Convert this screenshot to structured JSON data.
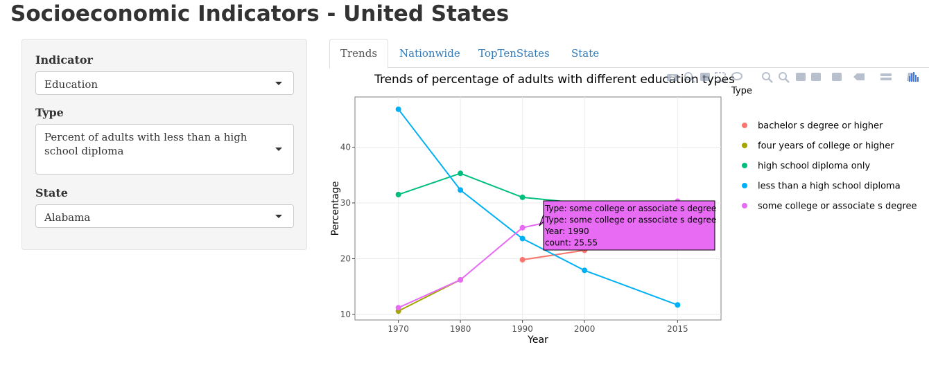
{
  "page": {
    "title": "Socioeconomic Indicators - United States"
  },
  "sidebar": {
    "indicator": {
      "label": "Indicator",
      "value": "Education"
    },
    "type": {
      "label": "Type",
      "value": "Percent of adults with less than a high school diploma"
    },
    "state": {
      "label": "State",
      "value": "Alabama"
    }
  },
  "tabs": [
    {
      "label": "Trends",
      "active": true
    },
    {
      "label": "Nationwide",
      "active": false
    },
    {
      "label": "TopTenStates",
      "active": false
    },
    {
      "label": "State",
      "active": false
    }
  ],
  "modebar": {
    "icons": [
      "camera-icon",
      "zoom-icon",
      "pan-icon",
      "box-select-icon",
      "lasso-icon",
      "zoom-in-icon",
      "zoom-out-icon",
      "autoscale-icon",
      "reset-axes-icon",
      "spike-lines-icon",
      "hover-closest-icon",
      "hover-compare-icon",
      "edit-chart-icon",
      "plotly-logo-icon"
    ],
    "color": "#7f8ea6"
  },
  "chart_data": {
    "type": "line",
    "title": "Trends of percentage of adults with different education types",
    "xlabel": "Year",
    "ylabel": "Percentage",
    "categories": [
      "1970",
      "1980",
      "1990",
      "2000",
      "2015"
    ],
    "xlim": [
      1963,
      2022
    ],
    "ylim": [
      9,
      49
    ],
    "yticks": [
      10,
      20,
      30,
      40
    ],
    "grid": true,
    "legend_title": "Type",
    "legend_position": "right",
    "series": [
      {
        "name": "bachelor s degree or higher",
        "color": "#F8766D",
        "x": [
          1990,
          2000,
          2015
        ],
        "values": [
          19.8,
          21.5,
          24.0
        ]
      },
      {
        "name": "four years of college or higher",
        "color": "#A3A500",
        "x": [
          1970,
          1980
        ],
        "values": [
          10.6,
          16.2
        ]
      },
      {
        "name": "high school diploma only",
        "color": "#00BF7D",
        "x": [
          1970,
          1980,
          1990,
          2000,
          2015
        ],
        "values": [
          31.5,
          35.3,
          31.0,
          29.9,
          30.0
        ]
      },
      {
        "name": "less than a high school diploma",
        "color": "#00B0F6",
        "x": [
          1970,
          1980,
          1990,
          2000,
          2015
        ],
        "values": [
          46.8,
          32.3,
          23.6,
          17.9,
          11.7
        ]
      },
      {
        "name": "some college or associate s degree",
        "color": "#E76BF3",
        "x": [
          1970,
          1980,
          1990,
          2000,
          2015
        ],
        "values": [
          11.2,
          16.2,
          25.55,
          28.0,
          30.3
        ]
      }
    ],
    "tooltip": {
      "lines": [
        "Type: some college or associate s degree",
        "Type: some college or associate s degree",
        "Year: 1990",
        "count: 25.55"
      ],
      "color": "#E76BF3"
    }
  }
}
